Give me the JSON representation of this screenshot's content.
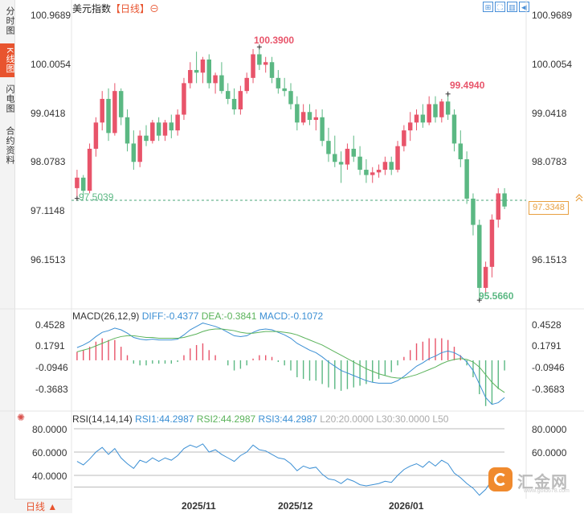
{
  "header": {
    "title": "美元指数",
    "period": "【日线】",
    "settings_icon": "gear-icon"
  },
  "sidebar": {
    "tabs": [
      "分时图",
      "K线图",
      "闪电图",
      "合约资料"
    ],
    "active": 1
  },
  "toolbar": {
    "icons": [
      "expand-icon",
      "fullscreen-icon",
      "bar-chart-icon",
      "arrow-left-icon"
    ]
  },
  "price_axis": {
    "labels": [
      "100.9689",
      "100.0054",
      "99.0418",
      "98.0783",
      "97.1148",
      "96.1513"
    ]
  },
  "annotations": {
    "high": "100.3900",
    "mid_high": "99.4940",
    "start_low": "97.5039",
    "low": "95.5660",
    "current": "97.3348"
  },
  "macd": {
    "title": "MACD(26,12,9)",
    "diff": "DIFF:-0.4377",
    "dea": "DEA:-0.3841",
    "macd": "MACD:-0.1072",
    "labels": [
      "0.4528",
      "0.1791",
      "-0.0946",
      "-0.3683"
    ]
  },
  "rsi": {
    "title": "RSI(14,14,14)",
    "rsi1": "RSI1:44.2987",
    "rsi2": "RSI2:44.2987",
    "rsi3": "RSI3:44.2987",
    "l20": "L20:20.0000",
    "l30": "L30:30.0000",
    "l50": "L50",
    "labels": [
      "80.0000",
      "60.0000",
      "40.0000"
    ]
  },
  "dates": [
    "2025/11",
    "2025/12",
    "2026/01"
  ],
  "bottom_tab": "日线 ▲",
  "watermark": {
    "text": "汇金网",
    "sub": "www.gold678.com"
  },
  "colors": {
    "up": "#e8546a",
    "down": "#5bb883",
    "diff": "#3b8fd4",
    "dea": "#5bb35b"
  },
  "chart_data": {
    "type": "candlestick",
    "ylim": [
      95.4,
      101.1
    ],
    "candles": [
      [
        97.7,
        98.05,
        97.5,
        97.9
      ],
      [
        97.9,
        97.95,
        97.55,
        97.65
      ],
      [
        97.65,
        98.55,
        97.6,
        98.45
      ],
      [
        98.45,
        99.05,
        98.3,
        98.95
      ],
      [
        98.95,
        99.55,
        98.8,
        99.4
      ],
      [
        99.4,
        99.6,
        98.6,
        98.75
      ],
      [
        98.75,
        99.7,
        98.7,
        99.55
      ],
      [
        99.55,
        99.6,
        98.9,
        99.05
      ],
      [
        99.05,
        99.2,
        98.4,
        98.55
      ],
      [
        98.55,
        98.8,
        98.05,
        98.2
      ],
      [
        98.2,
        98.8,
        98.1,
        98.7
      ],
      [
        98.7,
        98.9,
        98.5,
        98.6
      ],
      [
        98.6,
        99.0,
        98.55,
        98.95
      ],
      [
        98.95,
        99.05,
        98.6,
        98.7
      ],
      [
        98.7,
        99.0,
        98.6,
        98.95
      ],
      [
        98.95,
        99.1,
        98.65,
        98.8
      ],
      [
        98.8,
        99.2,
        98.7,
        99.1
      ],
      [
        99.1,
        99.8,
        99.0,
        99.7
      ],
      [
        99.7,
        100.1,
        99.6,
        99.95
      ],
      [
        99.95,
        100.3,
        99.7,
        99.9
      ],
      [
        99.9,
        100.2,
        99.7,
        100.15
      ],
      [
        100.15,
        100.25,
        99.6,
        99.7
      ],
      [
        99.7,
        99.9,
        99.5,
        99.85
      ],
      [
        99.85,
        100.1,
        99.5,
        99.55
      ],
      [
        99.55,
        99.7,
        99.3,
        99.4
      ],
      [
        99.4,
        99.6,
        99.1,
        99.2
      ],
      [
        99.2,
        99.65,
        99.1,
        99.55
      ],
      [
        99.55,
        99.9,
        99.5,
        99.8
      ],
      [
        99.8,
        100.35,
        99.7,
        100.25
      ],
      [
        100.25,
        100.39,
        99.95,
        100.05
      ],
      [
        100.05,
        100.2,
        99.9,
        100.1
      ],
      [
        100.1,
        100.2,
        99.7,
        99.8
      ],
      [
        99.8,
        99.95,
        99.5,
        99.6
      ],
      [
        99.6,
        99.8,
        99.45,
        99.55
      ],
      [
        99.55,
        99.7,
        99.2,
        99.3
      ],
      [
        99.3,
        99.45,
        98.8,
        98.95
      ],
      [
        98.95,
        99.3,
        98.9,
        99.15
      ],
      [
        99.15,
        99.3,
        98.9,
        99.0
      ],
      [
        99.0,
        99.2,
        98.8,
        99.05
      ],
      [
        99.05,
        99.2,
        98.5,
        98.6
      ],
      [
        98.6,
        98.85,
        98.2,
        98.35
      ],
      [
        98.35,
        98.7,
        98.1,
        98.2
      ],
      [
        98.2,
        98.4,
        97.8,
        98.15
      ],
      [
        98.15,
        98.55,
        98.05,
        98.45
      ],
      [
        98.45,
        98.7,
        98.2,
        98.3
      ],
      [
        98.3,
        98.5,
        97.95,
        98.05
      ],
      [
        98.05,
        98.25,
        97.8,
        97.95
      ],
      [
        97.95,
        98.1,
        97.8,
        98.0
      ],
      [
        98.0,
        98.15,
        97.9,
        98.05
      ],
      [
        98.05,
        98.3,
        97.95,
        98.2
      ],
      [
        98.2,
        98.3,
        97.95,
        98.05
      ],
      [
        98.05,
        98.6,
        98.0,
        98.5
      ],
      [
        98.5,
        98.9,
        98.4,
        98.8
      ],
      [
        98.8,
        99.15,
        98.6,
        98.95
      ],
      [
        98.95,
        99.2,
        98.8,
        99.1
      ],
      [
        99.1,
        99.3,
        98.85,
        98.95
      ],
      [
        98.95,
        99.45,
        98.9,
        99.3
      ],
      [
        99.3,
        99.45,
        98.95,
        99.05
      ],
      [
        99.05,
        99.4,
        98.95,
        99.35
      ],
      [
        99.35,
        99.49,
        99.0,
        99.1
      ],
      [
        99.1,
        99.2,
        98.4,
        98.55
      ],
      [
        98.55,
        98.8,
        98.1,
        98.25
      ],
      [
        98.25,
        98.4,
        97.4,
        97.5
      ],
      [
        97.5,
        97.6,
        96.8,
        97.0
      ],
      [
        97.0,
        97.1,
        95.57,
        95.8
      ],
      [
        95.8,
        96.3,
        95.7,
        96.2
      ],
      [
        96.2,
        97.2,
        96.0,
        97.1
      ],
      [
        97.1,
        97.7,
        96.95,
        97.6
      ],
      [
        97.6,
        97.7,
        97.3,
        97.35
      ]
    ],
    "macd_diff": [
      0.15,
      0.18,
      0.22,
      0.28,
      0.33,
      0.35,
      0.38,
      0.36,
      0.32,
      0.27,
      0.25,
      0.24,
      0.25,
      0.24,
      0.24,
      0.24,
      0.25,
      0.3,
      0.36,
      0.4,
      0.44,
      0.42,
      0.4,
      0.37,
      0.33,
      0.29,
      0.28,
      0.29,
      0.33,
      0.36,
      0.37,
      0.36,
      0.33,
      0.3,
      0.26,
      0.2,
      0.16,
      0.12,
      0.09,
      0.04,
      -0.02,
      -0.07,
      -0.12,
      -0.15,
      -0.18,
      -0.21,
      -0.24,
      -0.26,
      -0.27,
      -0.27,
      -0.27,
      -0.24,
      -0.19,
      -0.13,
      -0.07,
      -0.03,
      0.02,
      0.05,
      0.09,
      0.11,
      0.09,
      0.05,
      -0.02,
      -0.12,
      -0.28,
      -0.44,
      -0.52,
      -0.5,
      -0.44
    ],
    "macd_dea": [
      0.1,
      0.12,
      0.14,
      0.17,
      0.2,
      0.23,
      0.26,
      0.28,
      0.29,
      0.29,
      0.28,
      0.27,
      0.27,
      0.26,
      0.26,
      0.26,
      0.26,
      0.27,
      0.29,
      0.31,
      0.34,
      0.36,
      0.37,
      0.37,
      0.36,
      0.35,
      0.33,
      0.32,
      0.32,
      0.33,
      0.34,
      0.34,
      0.34,
      0.33,
      0.32,
      0.3,
      0.27,
      0.24,
      0.21,
      0.18,
      0.14,
      0.1,
      0.06,
      0.02,
      -0.02,
      -0.06,
      -0.1,
      -0.13,
      -0.16,
      -0.18,
      -0.2,
      -0.21,
      -0.21,
      -0.19,
      -0.17,
      -0.14,
      -0.11,
      -0.08,
      -0.04,
      -0.01,
      0.01,
      0.02,
      0.01,
      -0.02,
      -0.08,
      -0.17,
      -0.26,
      -0.33,
      -0.38
    ],
    "rsi": [
      52,
      49,
      54,
      60,
      64,
      58,
      63,
      55,
      50,
      46,
      53,
      51,
      55,
      52,
      55,
      53,
      57,
      63,
      66,
      64,
      67,
      60,
      62,
      58,
      55,
      52,
      57,
      60,
      66,
      62,
      61,
      58,
      55,
      54,
      50,
      44,
      48,
      46,
      47,
      41,
      37,
      36,
      33,
      37,
      35,
      32,
      31,
      32,
      33,
      35,
      34,
      40,
      45,
      48,
      50,
      47,
      52,
      48,
      53,
      50,
      42,
      38,
      33,
      29,
      23,
      28,
      36,
      42,
      44
    ]
  }
}
